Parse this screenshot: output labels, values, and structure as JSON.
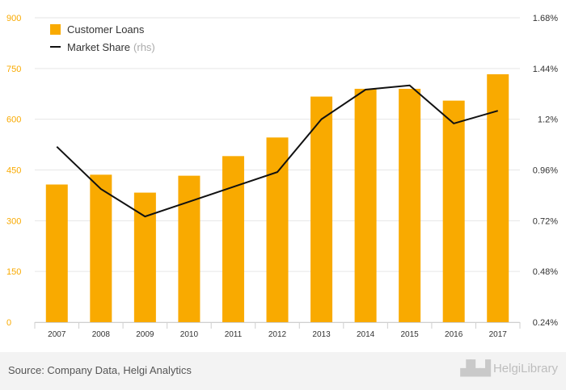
{
  "chart_data": {
    "type": "bar+line",
    "categories": [
      "2007",
      "2008",
      "2009",
      "2010",
      "2011",
      "2012",
      "2013",
      "2014",
      "2015",
      "2016",
      "2017"
    ],
    "series": [
      {
        "name": "Customer Loans",
        "type": "bar",
        "axis": "left",
        "color": "#f9aa00",
        "values": [
          407,
          436,
          383,
          433,
          491,
          546,
          667,
          690,
          690,
          655,
          733
        ]
      },
      {
        "name": "Market Share",
        "name_note": "(rhs)",
        "type": "line",
        "axis": "right",
        "color": "#111111",
        "values": [
          1.07,
          0.87,
          0.74,
          0.81,
          0.88,
          0.95,
          1.2,
          1.34,
          1.36,
          1.18,
          1.24
        ]
      }
    ],
    "y_left": {
      "min": 0,
      "max": 900,
      "ticks": [
        "0",
        "150",
        "300",
        "450",
        "600",
        "750",
        "900"
      ],
      "color": "#f9aa00"
    },
    "y_right": {
      "min": 0.24,
      "max": 1.68,
      "ticks": [
        "0.24%",
        "0.48%",
        "0.72%",
        "0.96%",
        "1.2%",
        "1.44%",
        "1.68%"
      ]
    },
    "grid": true,
    "legend": "top-left"
  },
  "source": "Source: Company Data, Helgi Analytics",
  "logo_text": "HelgiLibrary"
}
